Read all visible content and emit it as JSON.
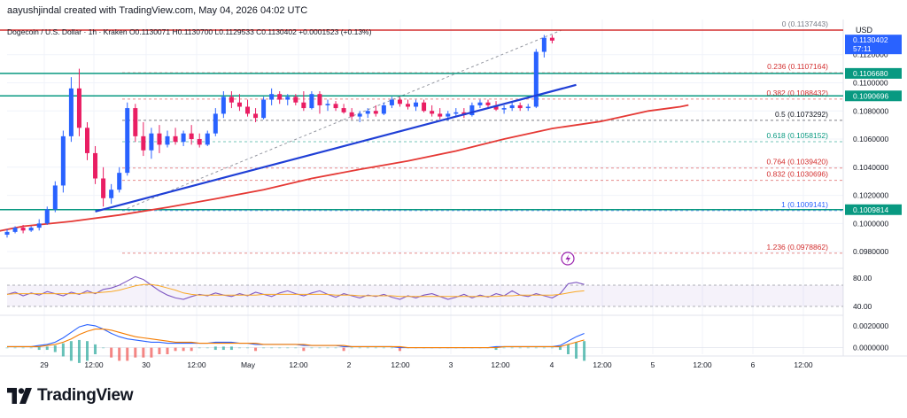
{
  "header": {
    "byline": "aayushjindal created with TradingView.com, May 04, 2026 04:02 UTC"
  },
  "footer": {
    "brand": "TradingView",
    "logo_icon": "tradingview-logo-icon"
  },
  "chart_data": [
    {
      "type": "candlestick",
      "title": "Dogecoin / U.S. Dollar · 1h · Kraken  O0.1130071  H0.1130700  L0.1129533  C0.1130402  +0.0001523 (+0.13%)",
      "currency": "USD",
      "ylim": [
        0.097,
        0.1145
      ],
      "x_ticks": [
        "29",
        "12:00",
        "30",
        "12:00",
        "May",
        "12:00",
        "2",
        "12:00",
        "3",
        "12:00",
        "4",
        "12:00",
        "5",
        "12:00",
        "6",
        "12:00"
      ],
      "y_ticks": [
        0.112,
        0.11,
        0.108,
        0.106,
        0.104,
        0.102,
        0.1,
        0.098
      ],
      "current_price": {
        "price": 0.1130402,
        "label": "0.1130402",
        "countdown": "57:11",
        "color": "#2962ff"
      },
      "horizontal_levels": [
        {
          "price": 0.1137443,
          "color": "#d32f2f"
        },
        {
          "price": 0.110668,
          "label": "0.1106680",
          "color": "#089981"
        },
        {
          "price": 0.1090696,
          "label": "0.1090696",
          "color": "#089981"
        },
        {
          "price": 0.1009814,
          "label": "0.1009814",
          "color": "#089981"
        }
      ],
      "fibonacci": [
        {
          "ratio": "0",
          "price": "0.1137443",
          "color": "#787b86"
        },
        {
          "ratio": "0.236",
          "price": "0.1107164",
          "color": "#d32f2f"
        },
        {
          "ratio": "0.382",
          "price": "0.1088432",
          "color": "#d32f2f"
        },
        {
          "ratio": "0.5",
          "price": "0.1073292",
          "color": "#131722"
        },
        {
          "ratio": "0.618",
          "price": "0.1058152",
          "color": "#089981"
        },
        {
          "ratio": "0.764",
          "price": "0.1039420",
          "color": "#d32f2f"
        },
        {
          "ratio": "0.832",
          "price": "0.1030696",
          "color": "#d32f2f"
        },
        {
          "ratio": "1",
          "price": "0.1009141",
          "color": "#2962ff"
        },
        {
          "ratio": "1.236",
          "price": "0.0978862",
          "color": "#d32f2f"
        }
      ],
      "trendline": {
        "from": [
          11,
          0.10085
        ],
        "to": [
          71,
          0.10985
        ],
        "color": "#1f3fd6"
      },
      "moving_average": {
        "color": "#e53935",
        "points": [
          [
            -8,
            0.09905
          ],
          [
            -2,
            0.09935
          ],
          [
            2,
            0.0998
          ],
          [
            8,
            0.10015
          ],
          [
            14,
            0.1006
          ],
          [
            20,
            0.10115
          ],
          [
            26,
            0.10175
          ],
          [
            32,
            0.1024
          ],
          [
            38,
            0.1032
          ],
          [
            44,
            0.10385
          ],
          [
            50,
            0.10445
          ],
          [
            56,
            0.10515
          ],
          [
            62,
            0.106
          ],
          [
            68,
            0.10675
          ],
          [
            74,
            0.10725
          ],
          [
            80,
            0.108
          ],
          [
            84,
            0.1083
          ],
          [
            85,
            0.10842
          ]
        ]
      },
      "candle_fields": [
        "open",
        "high",
        "low",
        "close"
      ],
      "candles": [
        [
          0.0992,
          0.0996,
          0.099,
          0.0994
        ],
        [
          0.0994,
          0.0998,
          0.0993,
          0.0997
        ],
        [
          0.0997,
          0.0999,
          0.0993,
          0.0995
        ],
        [
          0.0995,
          0.0998,
          0.0994,
          0.0997
        ],
        [
          0.0997,
          0.1003,
          0.0995,
          0.1
        ],
        [
          0.1,
          0.1012,
          0.0999,
          0.101
        ],
        [
          0.101,
          0.103,
          0.1008,
          0.1027
        ],
        [
          0.1027,
          0.1066,
          0.1022,
          0.1062
        ],
        [
          0.1062,
          0.1104,
          0.1058,
          0.1096
        ],
        [
          0.1096,
          0.111,
          0.1062,
          0.1068
        ],
        [
          0.1068,
          0.1072,
          0.1045,
          0.105
        ],
        [
          0.105,
          0.1055,
          0.1028,
          0.1032
        ],
        [
          0.1032,
          0.104,
          0.1012,
          0.1018
        ],
        [
          0.1018,
          0.1028,
          0.1014,
          0.1024
        ],
        [
          0.1024,
          0.104,
          0.1022,
          0.1036
        ],
        [
          0.1036,
          0.1086,
          0.1034,
          0.1082
        ],
        [
          0.1082,
          0.1085,
          0.1058,
          0.1062
        ],
        [
          0.1062,
          0.1072,
          0.1048,
          0.1052
        ],
        [
          0.1052,
          0.1068,
          0.1046,
          0.1064
        ],
        [
          0.1064,
          0.107,
          0.105,
          0.1056
        ],
        [
          0.1056,
          0.1066,
          0.1054,
          0.1062
        ],
        [
          0.1062,
          0.1068,
          0.1056,
          0.1058
        ],
        [
          0.1058,
          0.1066,
          0.1055,
          0.1064
        ],
        [
          0.1064,
          0.107,
          0.1056,
          0.106
        ],
        [
          0.106,
          0.1064,
          0.1054,
          0.1056
        ],
        [
          0.1056,
          0.1066,
          0.1055,
          0.1064
        ],
        [
          0.1064,
          0.1082,
          0.1062,
          0.1078
        ],
        [
          0.1078,
          0.1094,
          0.1075,
          0.109
        ],
        [
          0.109,
          0.1094,
          0.1082,
          0.1086
        ],
        [
          0.1086,
          0.1092,
          0.108,
          0.1083
        ],
        [
          0.1083,
          0.1088,
          0.1076,
          0.1078
        ],
        [
          0.1078,
          0.1082,
          0.1072,
          0.1075
        ],
        [
          0.1075,
          0.109,
          0.1074,
          0.1088
        ],
        [
          0.1088,
          0.1096,
          0.1084,
          0.1092
        ],
        [
          0.1092,
          0.1094,
          0.1085,
          0.1088
        ],
        [
          0.1088,
          0.1092,
          0.1084,
          0.109
        ],
        [
          0.109,
          0.1092,
          0.1084,
          0.1086
        ],
        [
          0.1086,
          0.1094,
          0.108,
          0.1082
        ],
        [
          0.1082,
          0.1094,
          0.1081,
          0.1092
        ],
        [
          0.1092,
          0.1094,
          0.1078,
          0.1084
        ],
        [
          0.1084,
          0.1088,
          0.108,
          0.1085
        ],
        [
          0.1085,
          0.1087,
          0.108,
          0.1082
        ],
        [
          0.1082,
          0.1085,
          0.1078,
          0.1079
        ],
        [
          0.1079,
          0.1082,
          0.1074,
          0.1076
        ],
        [
          0.1076,
          0.108,
          0.1072,
          0.1078
        ],
        [
          0.1078,
          0.1082,
          0.1075,
          0.108
        ],
        [
          0.108,
          0.1084,
          0.1076,
          0.1078
        ],
        [
          0.1078,
          0.1086,
          0.1077,
          0.1084
        ],
        [
          0.1084,
          0.109,
          0.1082,
          0.1088
        ],
        [
          0.1088,
          0.109,
          0.1083,
          0.1085
        ],
        [
          0.1085,
          0.1088,
          0.1081,
          0.1083
        ],
        [
          0.1083,
          0.1088,
          0.108,
          0.1086
        ],
        [
          0.1086,
          0.1088,
          0.1079,
          0.108
        ],
        [
          0.108,
          0.1084,
          0.1076,
          0.1078
        ],
        [
          0.1078,
          0.1082,
          0.1074,
          0.1076
        ],
        [
          0.1076,
          0.108,
          0.1073,
          0.1078
        ],
        [
          0.1078,
          0.1082,
          0.1076,
          0.1079
        ],
        [
          0.1079,
          0.1082,
          0.1075,
          0.1077
        ],
        [
          0.1077,
          0.1086,
          0.1076,
          0.1084
        ],
        [
          0.1084,
          0.1088,
          0.1082,
          0.1086
        ],
        [
          0.1086,
          0.1088,
          0.1082,
          0.1084
        ],
        [
          0.1084,
          0.1087,
          0.108,
          0.1081
        ],
        [
          0.1081,
          0.1084,
          0.1078,
          0.1082
        ],
        [
          0.1082,
          0.1086,
          0.108,
          0.1084
        ],
        [
          0.1084,
          0.1086,
          0.108,
          0.1082
        ],
        [
          0.1082,
          0.1085,
          0.108,
          0.1083
        ],
        [
          0.1083,
          0.1124,
          0.1082,
          0.1122
        ],
        [
          0.1122,
          0.1134,
          0.1118,
          0.1132
        ],
        [
          0.1132,
          0.1134,
          0.1128,
          0.113
        ]
      ]
    },
    {
      "type": "line",
      "name": "oscillator",
      "ylim": [
        30,
        90
      ],
      "y_ticks": [
        80.0,
        40.0
      ],
      "band": [
        40,
        70
      ],
      "series": [
        {
          "color": "#7e57c2",
          "values": [
            57,
            60,
            55,
            59,
            56,
            61,
            58,
            55,
            60,
            57,
            62,
            58,
            64,
            66,
            70,
            76,
            82,
            78,
            70,
            62,
            56,
            52,
            50,
            54,
            57,
            55,
            59,
            56,
            54,
            58,
            55,
            60,
            57,
            54,
            59,
            62,
            58,
            55,
            59,
            62,
            57,
            53,
            58,
            55,
            52,
            56,
            54,
            57,
            53,
            50,
            55,
            52,
            56,
            58,
            54,
            50,
            53,
            57,
            52,
            56,
            53,
            58,
            55,
            62,
            56,
            54,
            58,
            55,
            52,
            58,
            72,
            74,
            71
          ]
        },
        {
          "color": "#f9a825",
          "values": [
            57,
            58,
            58,
            58,
            58,
            58,
            58,
            58,
            58,
            58,
            59,
            59,
            60,
            61,
            63,
            66,
            69,
            71,
            71,
            69,
            66,
            63,
            59,
            57,
            56,
            56,
            56,
            56,
            56,
            56,
            56,
            56,
            57,
            57,
            57,
            57,
            57,
            57,
            57,
            57,
            57,
            56,
            56,
            56,
            55,
            55,
            55,
            55,
            55,
            54,
            54,
            54,
            54,
            54,
            54,
            54,
            54,
            54,
            54,
            54,
            54,
            54,
            55,
            55,
            56,
            56,
            56,
            56,
            56,
            57,
            59,
            61,
            62
          ]
        }
      ]
    },
    {
      "type": "line",
      "name": "macd",
      "ylim": [
        -0.0006,
        0.0028
      ],
      "y_ticks": [
        0.002,
        0.0
      ],
      "series": [
        {
          "color": "#2962ff",
          "values": [
            0.0001,
            0.0001,
            0.0001,
            0.0001,
            0.0002,
            0.0003,
            0.0005,
            0.0009,
            0.0014,
            0.0019,
            0.0021,
            0.002,
            0.0017,
            0.0013,
            0.001,
            0.0008,
            0.0007,
            0.0006,
            0.0005,
            0.0005,
            0.0004,
            0.0004,
            0.0004,
            0.0004,
            0.0004,
            0.0004,
            0.0005,
            0.0005,
            0.0005,
            0.0004,
            0.0004,
            0.0003,
            0.0003,
            0.0003,
            0.0003,
            0.0003,
            0.0003,
            0.0002,
            0.0002,
            0.0002,
            0.0002,
            0.0002,
            0.0001,
            0.0001,
            0.0001,
            0.0001,
            0.0001,
            0.0001,
            0.0001,
            0.0,
            0.0,
            0.0,
            0.0,
            0.0,
            0.0,
            0.0,
            0.0,
            0.0,
            0.0,
            0.0,
            0.0,
            0.0001,
            0.0001,
            0.0001,
            0.0001,
            0.0001,
            0.0001,
            0.0001,
            0.0001,
            0.0002,
            0.0006,
            0.001,
            0.0013
          ]
        },
        {
          "color": "#f57c00",
          "values": [
            0.0001,
            0.0001,
            0.0001,
            0.0001,
            0.0001,
            0.0002,
            0.0003,
            0.0005,
            0.0008,
            0.0012,
            0.0015,
            0.0017,
            0.0017,
            0.0016,
            0.0014,
            0.0012,
            0.001,
            0.0009,
            0.0008,
            0.0007,
            0.0006,
            0.0005,
            0.0005,
            0.0005,
            0.0004,
            0.0004,
            0.0004,
            0.0004,
            0.0004,
            0.0004,
            0.0004,
            0.0004,
            0.0003,
            0.0003,
            0.0003,
            0.0003,
            0.0003,
            0.0003,
            0.0002,
            0.0002,
            0.0002,
            0.0002,
            0.0002,
            0.0001,
            0.0001,
            0.0001,
            0.0001,
            0.0001,
            0.0001,
            0.0001,
            0.0,
            0.0,
            0.0,
            0.0,
            0.0,
            0.0,
            0.0,
            0.0,
            0.0,
            0.0,
            0.0,
            0.0,
            0.0001,
            0.0001,
            0.0001,
            0.0001,
            0.0001,
            0.0001,
            0.0001,
            0.0001,
            0.0003,
            0.0005,
            0.0007
          ]
        }
      ]
    }
  ]
}
